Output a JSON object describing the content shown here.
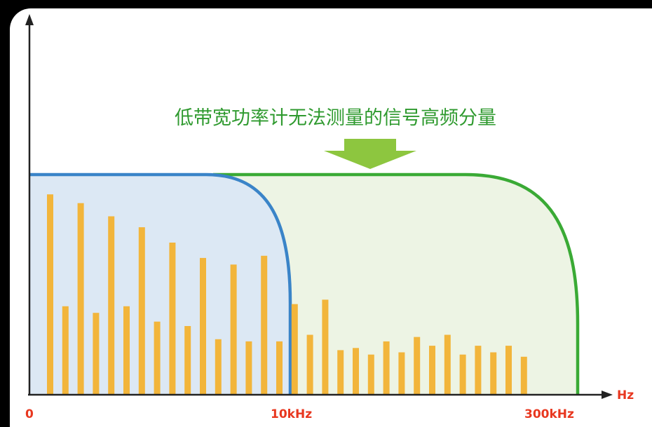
{
  "annotation": {
    "text": "低带宽功率计无法测量的信号高频分量",
    "color": "#2f9a2f",
    "arrow_color": "#8dc63f"
  },
  "axes": {
    "x_unit": "Hz",
    "x_tick_labels": [
      "0",
      "10kHz",
      "300kHz"
    ],
    "label_color": "#e8371f",
    "axis_color": "#222222"
  },
  "colors": {
    "low_bandwidth_curve": "#3a84c8",
    "low_bandwidth_fill": "#dce8f4",
    "high_bandwidth_curve": "#3aaa35",
    "high_bandwidth_fill": "#edf4e4",
    "bars": "#f2b53b"
  },
  "chart_data": {
    "type": "bar",
    "bar_heights_relative": [
      0.91,
      0.4,
      0.87,
      0.37,
      0.81,
      0.4,
      0.76,
      0.33,
      0.69,
      0.31,
      0.62,
      0.25,
      0.59,
      0.24,
      0.63,
      0.24,
      0.41,
      0.27,
      0.43,
      0.2,
      0.21,
      0.18,
      0.24,
      0.19,
      0.26,
      0.22,
      0.27,
      0.18,
      0.22,
      0.19,
      0.22,
      0.17
    ],
    "passband_level_relative": 1.0
  }
}
